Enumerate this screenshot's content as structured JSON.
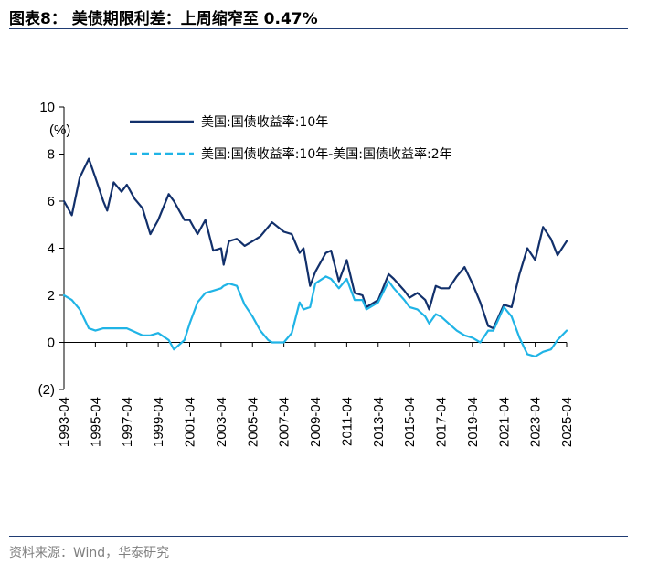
{
  "header": {
    "title": "图表8：  美债期限利差：上周缩窄至 0.47%"
  },
  "footer": {
    "source": "资料来源：Wind，华泰研究"
  },
  "colors": {
    "series_10y": "#12306b",
    "series_spread": "#20b4e6",
    "rule": "#1f3b73"
  },
  "chart_data": {
    "type": "line",
    "title": "",
    "y_unit": "(%)",
    "ylim": [
      -2,
      10
    ],
    "y_ticks": [
      {
        "value": 10,
        "label": "10"
      },
      {
        "value": 8,
        "label": "8"
      },
      {
        "value": 6,
        "label": "6"
      },
      {
        "value": 4,
        "label": "4"
      },
      {
        "value": 2,
        "label": "2"
      },
      {
        "value": 0,
        "label": "0"
      },
      {
        "value": -2,
        "label": "(2)"
      }
    ],
    "x_ticks": [
      "1993-04",
      "1995-04",
      "1997-04",
      "1999-04",
      "2001-04",
      "2003-04",
      "2005-04",
      "2007-04",
      "2009-04",
      "2011-04",
      "2013-04",
      "2015-04",
      "2017-04",
      "2019-04",
      "2021-04",
      "2023-04",
      "2025-04"
    ],
    "xlim": [
      "1993-04",
      "2025-04"
    ],
    "legend_position": "top",
    "grid": false,
    "series": [
      {
        "name": "美国:国债收益率:10年",
        "style": "solid",
        "x": [
          "1993-04",
          "1993-10",
          "1994-04",
          "1994-11",
          "1995-04",
          "1995-10",
          "1996-01",
          "1996-06",
          "1996-12",
          "1997-04",
          "1997-10",
          "1998-04",
          "1998-10",
          "1999-04",
          "1999-12",
          "2000-04",
          "2000-12",
          "2001-04",
          "2001-10",
          "2002-04",
          "2002-10",
          "2003-04",
          "2003-06",
          "2003-10",
          "2004-04",
          "2004-10",
          "2005-04",
          "2005-10",
          "2006-04",
          "2006-07",
          "2007-04",
          "2007-10",
          "2008-04",
          "2008-07",
          "2008-12",
          "2009-04",
          "2009-12",
          "2010-04",
          "2010-10",
          "2011-04",
          "2011-10",
          "2012-04",
          "2012-07",
          "2013-04",
          "2013-12",
          "2014-04",
          "2014-12",
          "2015-04",
          "2015-10",
          "2016-04",
          "2016-07",
          "2016-12",
          "2017-04",
          "2017-10",
          "2018-04",
          "2018-10",
          "2019-04",
          "2019-10",
          "2020-04",
          "2020-08",
          "2021-04",
          "2021-10",
          "2022-04",
          "2022-10",
          "2023-04",
          "2023-10",
          "2024-04",
          "2024-09",
          "2025-04"
        ],
        "y": [
          6.0,
          5.4,
          7.0,
          7.8,
          7.0,
          6.0,
          5.6,
          6.8,
          6.4,
          6.7,
          6.1,
          5.7,
          4.6,
          5.2,
          6.3,
          6.0,
          5.2,
          5.2,
          4.6,
          5.2,
          3.9,
          4.0,
          3.3,
          4.3,
          4.4,
          4.1,
          4.3,
          4.5,
          4.9,
          5.1,
          4.7,
          4.6,
          3.8,
          4.0,
          2.4,
          3.0,
          3.8,
          3.9,
          2.6,
          3.5,
          2.1,
          2.0,
          1.5,
          1.8,
          2.9,
          2.7,
          2.2,
          1.9,
          2.1,
          1.8,
          1.4,
          2.4,
          2.3,
          2.3,
          2.8,
          3.2,
          2.5,
          1.7,
          0.7,
          0.6,
          1.6,
          1.5,
          2.9,
          4.0,
          3.5,
          4.9,
          4.4,
          3.7,
          4.3
        ]
      },
      {
        "name": "美国:国债收益率:10年-美国:国债收益率:2年",
        "style": "dashed",
        "x": [
          "1993-04",
          "1993-10",
          "1994-04",
          "1994-11",
          "1995-04",
          "1995-10",
          "1996-06",
          "1997-04",
          "1998-04",
          "1998-10",
          "1999-04",
          "1999-12",
          "2000-04",
          "2000-12",
          "2001-04",
          "2001-10",
          "2002-04",
          "2002-10",
          "2003-04",
          "2003-06",
          "2003-10",
          "2004-04",
          "2004-10",
          "2005-04",
          "2005-10",
          "2006-04",
          "2006-07",
          "2007-04",
          "2007-10",
          "2008-04",
          "2008-07",
          "2008-12",
          "2009-04",
          "2009-12",
          "2010-04",
          "2010-10",
          "2011-04",
          "2011-10",
          "2012-04",
          "2012-07",
          "2013-04",
          "2013-12",
          "2014-04",
          "2014-12",
          "2015-04",
          "2015-10",
          "2016-04",
          "2016-07",
          "2016-12",
          "2017-04",
          "2017-10",
          "2018-04",
          "2018-10",
          "2019-04",
          "2019-10",
          "2020-04",
          "2020-08",
          "2021-04",
          "2021-10",
          "2022-04",
          "2022-10",
          "2023-04",
          "2023-10",
          "2024-04",
          "2024-09",
          "2025-04"
        ],
        "y": [
          2.0,
          1.8,
          1.4,
          0.6,
          0.5,
          0.6,
          0.6,
          0.6,
          0.3,
          0.3,
          0.4,
          0.1,
          -0.3,
          0.1,
          0.8,
          1.7,
          2.1,
          2.2,
          2.3,
          2.4,
          2.5,
          2.4,
          1.6,
          1.1,
          0.5,
          0.1,
          0.0,
          0.0,
          0.4,
          1.7,
          1.4,
          1.5,
          2.5,
          2.8,
          2.7,
          2.3,
          2.7,
          1.8,
          1.8,
          1.4,
          1.7,
          2.6,
          2.3,
          1.8,
          1.5,
          1.4,
          1.1,
          0.8,
          1.2,
          1.1,
          0.8,
          0.5,
          0.3,
          0.2,
          0.0,
          0.5,
          0.5,
          1.5,
          1.1,
          0.2,
          -0.5,
          -0.6,
          -0.4,
          -0.3,
          0.1,
          0.5
        ]
      }
    ]
  }
}
